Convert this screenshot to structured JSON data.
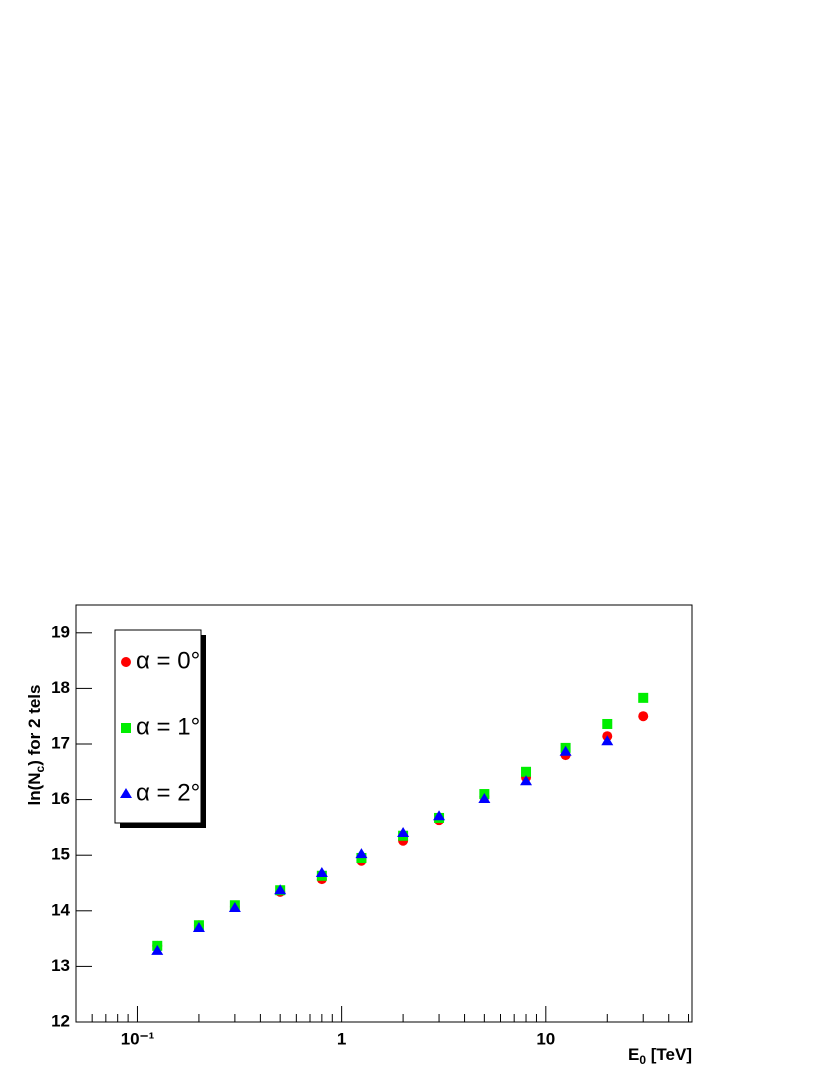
{
  "chart_data": {
    "type": "scatter",
    "xlabel": [
      "E",
      "0",
      " [TeV]"
    ],
    "ylabel": [
      "ln(N",
      "c",
      ") for 2 tels"
    ],
    "xlog": true,
    "xlim": [
      0.05,
      52
    ],
    "ylim": [
      12,
      19.5
    ],
    "xticks": [
      {
        "value": 0.1,
        "label": "10⁻¹"
      },
      1,
      10
    ],
    "xminorticks": [
      0.06,
      0.07,
      0.08,
      0.09,
      0.2,
      0.3,
      0.4,
      0.5,
      0.6,
      0.7,
      0.8,
      0.9,
      2,
      3,
      4,
      5,
      6,
      7,
      8,
      9,
      20,
      30,
      40,
      50
    ],
    "yticks": [
      12,
      13,
      14,
      15,
      16,
      17,
      18,
      19
    ],
    "x": [
      0.125,
      0.2,
      0.3,
      0.5,
      0.8,
      1.25,
      2,
      3,
      5,
      8,
      12.5,
      20,
      30
    ],
    "series": [
      {
        "name": "α = 0°",
        "color": "#ff0000",
        "marker": "circle",
        "values": [
          13.37,
          13.74,
          14.07,
          14.34,
          14.57,
          14.9,
          15.26,
          15.63,
          16.05,
          16.4,
          16.8,
          17.14,
          17.5
        ]
      },
      {
        "name": "α = 1°",
        "color": "#00ee00",
        "marker": "square",
        "values": [
          13.37,
          13.74,
          14.1,
          14.37,
          14.63,
          14.95,
          15.35,
          15.67,
          16.1,
          16.5,
          16.93,
          17.36,
          17.83
        ]
      },
      {
        "name": "α = 2°",
        "color": "#0000ff",
        "marker": "triangle",
        "values": [
          13.28,
          13.69,
          14.05,
          14.37,
          14.68,
          15.02,
          15.4,
          15.7,
          16.01,
          16.33,
          16.86,
          17.05,
          null
        ]
      }
    ]
  }
}
